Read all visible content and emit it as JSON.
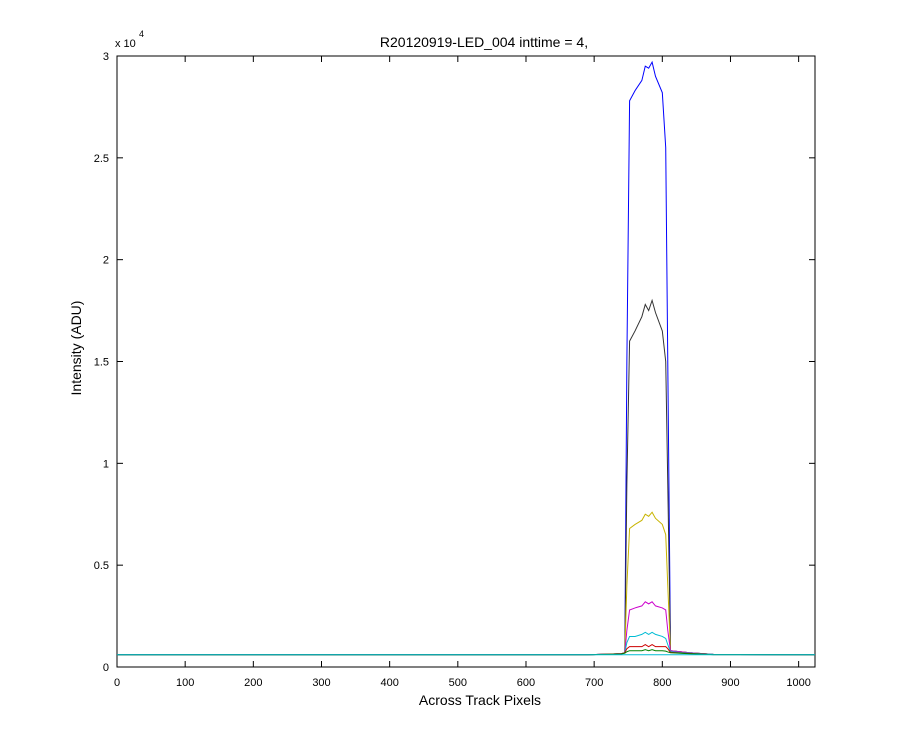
{
  "chart_data": {
    "type": "line",
    "title": "R20120919-LED_004 inttime = 4,",
    "xlabel": "Across Track Pixels",
    "ylabel": "Intensity (ADU)",
    "y_multiplier": {
      "base": "x 10",
      "exponent": "4"
    },
    "xlim": [
      0,
      1024
    ],
    "ylim": [
      0,
      3
    ],
    "xticks": [
      0,
      100,
      200,
      300,
      400,
      500,
      600,
      700,
      800,
      900,
      1000
    ],
    "yticks": [
      0,
      0.5,
      1,
      1.5,
      2,
      2.5,
      3
    ],
    "grid": false,
    "x": [
      0,
      690,
      740,
      745,
      748,
      752,
      760,
      770,
      775,
      780,
      785,
      790,
      800,
      805,
      808,
      812,
      840,
      875,
      1024
    ],
    "series": [
      {
        "color": "#0000ff",
        "values": [
          0.06,
          0.06,
          0.065,
          0.07,
          1.5,
          2.78,
          2.83,
          2.88,
          2.95,
          2.94,
          2.97,
          2.9,
          2.82,
          2.55,
          1.5,
          0.08,
          0.07,
          0.062,
          0.06
        ]
      },
      {
        "color": "#333333",
        "values": [
          0.06,
          0.06,
          0.065,
          0.07,
          0.9,
          1.6,
          1.65,
          1.72,
          1.78,
          1.75,
          1.8,
          1.74,
          1.65,
          1.5,
          0.9,
          0.08,
          0.07,
          0.062,
          0.06
        ]
      },
      {
        "color": "#c8b400",
        "values": [
          0.06,
          0.06,
          0.065,
          0.07,
          0.4,
          0.68,
          0.7,
          0.72,
          0.75,
          0.74,
          0.76,
          0.73,
          0.7,
          0.65,
          0.4,
          0.08,
          0.07,
          0.062,
          0.06
        ]
      },
      {
        "color": "#cc00cc",
        "values": [
          0.06,
          0.06,
          0.065,
          0.07,
          0.18,
          0.28,
          0.29,
          0.3,
          0.32,
          0.31,
          0.32,
          0.3,
          0.29,
          0.28,
          0.18,
          0.08,
          0.07,
          0.062,
          0.06
        ]
      },
      {
        "color": "#00bcd4",
        "values": [
          0.06,
          0.06,
          0.065,
          0.07,
          0.12,
          0.15,
          0.15,
          0.16,
          0.17,
          0.16,
          0.17,
          0.16,
          0.15,
          0.14,
          0.11,
          0.075,
          0.068,
          0.062,
          0.06
        ]
      },
      {
        "color": "#cc0000",
        "values": [
          0.06,
          0.06,
          0.065,
          0.07,
          0.09,
          0.1,
          0.1,
          0.1,
          0.11,
          0.1,
          0.11,
          0.1,
          0.1,
          0.1,
          0.09,
          0.072,
          0.066,
          0.061,
          0.06
        ]
      },
      {
        "color": "#008000",
        "values": [
          0.06,
          0.06,
          0.064,
          0.068,
          0.075,
          0.08,
          0.08,
          0.08,
          0.085,
          0.08,
          0.085,
          0.08,
          0.08,
          0.078,
          0.074,
          0.07,
          0.065,
          0.061,
          0.06
        ]
      },
      {
        "color": "#00bcd4",
        "values": [
          0.06,
          0.06,
          0.06,
          0.06,
          0.06,
          0.06,
          0.06,
          0.06,
          0.06,
          0.06,
          0.06,
          0.06,
          0.06,
          0.06,
          0.06,
          0.06,
          0.06,
          0.06,
          0.06
        ]
      }
    ]
  }
}
